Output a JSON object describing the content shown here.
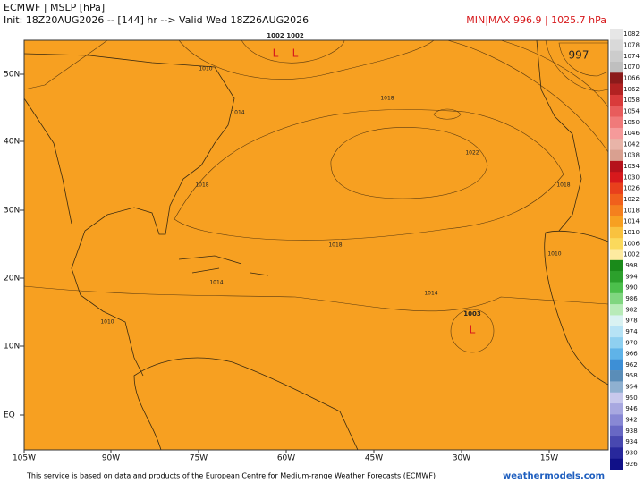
{
  "header": {
    "title": "ECMWF | MSLP [hPa]",
    "subtitle": "Init: 18Z20AUG2026 -- [144] hr --> Valid Wed 18Z26AUG2026",
    "minmax": "MIN|MAX 996.9 | 1025.7 hPa"
  },
  "map": {
    "lat_labels": [
      "50N",
      "40N",
      "30N",
      "20N",
      "10N",
      "EQ"
    ],
    "lon_labels": [
      "105W",
      "90W",
      "75W",
      "60W",
      "45W",
      "30W",
      "15W"
    ],
    "contour_labels": [
      "1002",
      "1002",
      "997",
      "1010",
      "1014",
      "1018",
      "1022",
      "1018",
      "1018",
      "1018",
      "1014",
      "1003",
      "1010",
      "1014",
      "1010"
    ],
    "low_markers": [
      "L",
      "L",
      "L"
    ]
  },
  "colorbar": {
    "levels": [
      "1082",
      "1078",
      "1074",
      "1070",
      "1066",
      "1062",
      "1058",
      "1054",
      "1050",
      "1046",
      "1042",
      "1038",
      "1034",
      "1030",
      "1026",
      "1022",
      "1018",
      "1014",
      "1010",
      "1006",
      "1002",
      "998",
      "994",
      "990",
      "986",
      "982",
      "978",
      "974",
      "970",
      "966",
      "962",
      "958",
      "954",
      "950",
      "946",
      "942",
      "938",
      "934",
      "930",
      "926"
    ],
    "colors": [
      "#e6e6e6",
      "#d9d9d9",
      "#cccccc",
      "#bfbfbf",
      "#8b1a1a",
      "#b22222",
      "#d93b3b",
      "#e85c5c",
      "#f07a7a",
      "#f59a9a",
      "#e8b4a8",
      "#d9a090",
      "#b5121b",
      "#d7191c",
      "#e8401c",
      "#f0601c",
      "#f4801e",
      "#f7a021",
      "#f9c23f",
      "#fbd95c",
      "#fdeaa0",
      "#1a8a1a",
      "#2ca02c",
      "#4cbf4c",
      "#80d680",
      "#b8ebb8",
      "#d9f2f2",
      "#b7e3f5",
      "#8fd0f0",
      "#5fb3e8",
      "#3d8fd6",
      "#5a8db8",
      "#8fb0d0",
      "#c8c8ec",
      "#a8a8e0",
      "#8888d4",
      "#6868c4",
      "#4848b0",
      "#28289c",
      "#101088"
    ]
  },
  "footer": {
    "notice": "This service is based on data and products of the European Centre for Medium-range Weather Forecasts (ECMWF)",
    "site": "weathermodels.com"
  }
}
